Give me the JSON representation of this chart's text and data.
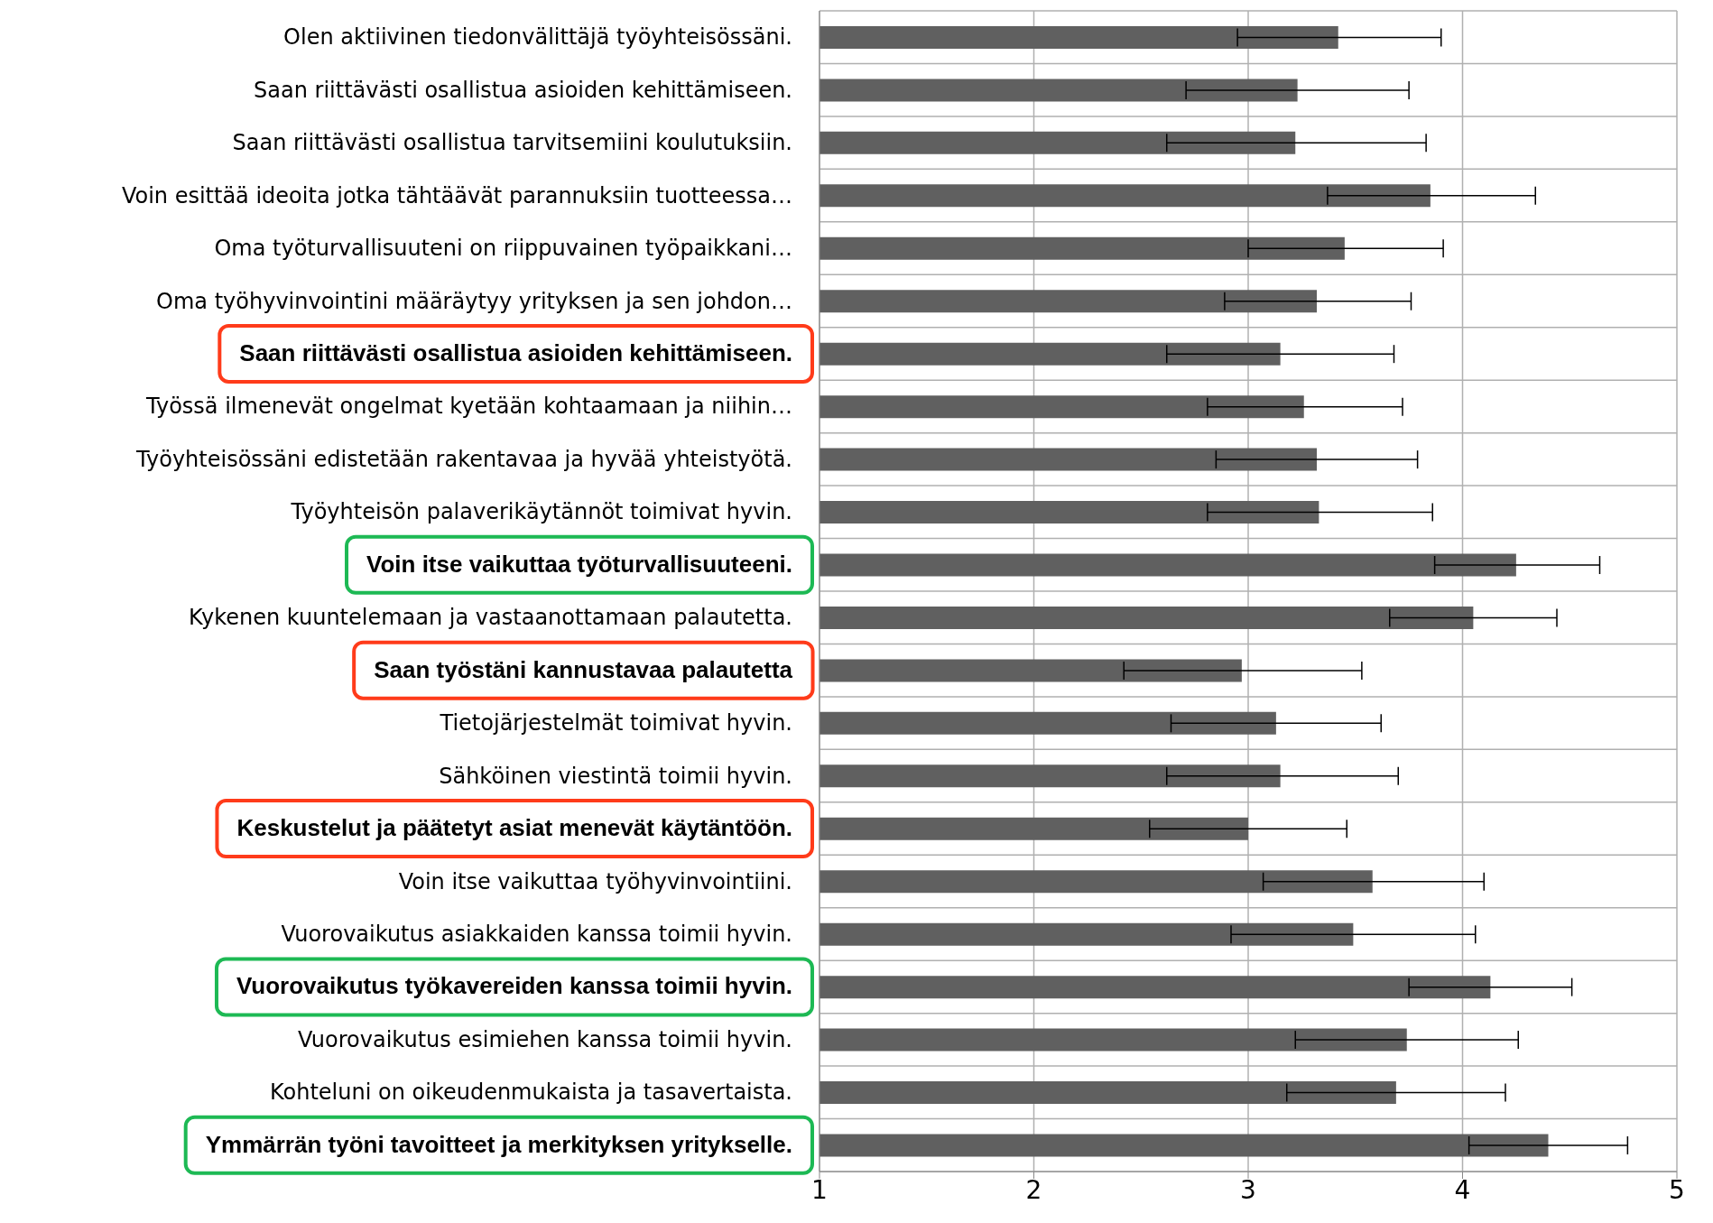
{
  "chart_data": {
    "type": "bar",
    "orientation": "horizontal",
    "categories": [
      "Olen aktiivinen tiedonvälittäjä työyhteisössäni.",
      "Saan riittävästi osallistua asioiden kehittämiseen.",
      "Saan riittävästi osallistua tarvitsemiini koulutuksiin.",
      "Voin esittää ideoita jotka tähtäävät parannuksiin tuotteessa…",
      "Oma työturvallisuuteni on riippuvainen työpaikkani…",
      "Oma työhyvinvointini määräytyy yrityksen ja sen johdon…",
      "Saan riittävästi osallistua asioiden kehittämiseen.",
      "Työssä ilmenevät ongelmat kyetään kohtaamaan ja niihin…",
      "Työyhteisössäni edistetään rakentavaa ja hyvää yhteistyötä.",
      "Työyhteisön palaverikäytännöt toimivat hyvin.",
      "Voin itse vaikuttaa työturvallisuuteeni.",
      "Kykenen kuuntelemaan ja vastaanottamaan palautetta.",
      "Saan työstäni kannustavaa palautetta",
      "Tietojärjestelmät toimivat hyvin.",
      "Sähköinen viestintä toimii hyvin.",
      "Keskustelut ja päätetyt asiat menevät käytäntöön.",
      "Voin itse vaikuttaa työhyvinvointiini.",
      "Vuorovaikutus asiakkaiden kanssa toimii hyvin.",
      "Vuorovaikutus työkavereiden kanssa toimii hyvin.",
      "Vuorovaikutus esimiehen kanssa toimii hyvin.",
      "Kohteluni on oikeudenmukaista ja tasavertaista.",
      "Ymmärrän työni tavoitteet ja merkityksen yritykselle."
    ],
    "values": [
      3.42,
      3.23,
      3.22,
      3.85,
      3.45,
      3.32,
      3.15,
      3.26,
      3.32,
      3.33,
      4.25,
      4.05,
      2.97,
      3.13,
      3.15,
      3.0,
      3.58,
      3.49,
      4.13,
      3.74,
      3.69,
      4.4
    ],
    "errors": [
      [
        2.95,
        3.9
      ],
      [
        2.71,
        3.75
      ],
      [
        2.62,
        3.83
      ],
      [
        3.37,
        4.34
      ],
      [
        3.0,
        3.91
      ],
      [
        2.89,
        3.76
      ],
      [
        2.62,
        3.68
      ],
      [
        2.81,
        3.72
      ],
      [
        2.85,
        3.79
      ],
      [
        2.81,
        3.86
      ],
      [
        3.87,
        4.64
      ],
      [
        3.66,
        4.44
      ],
      [
        2.42,
        3.53
      ],
      [
        2.64,
        3.62
      ],
      [
        2.62,
        3.7
      ],
      [
        2.54,
        3.46
      ],
      [
        3.07,
        4.1
      ],
      [
        2.92,
        4.06
      ],
      [
        3.75,
        4.51
      ],
      [
        3.22,
        4.26
      ],
      [
        3.18,
        4.2
      ],
      [
        4.03,
        4.77
      ]
    ],
    "color": "#606060",
    "xlim": [
      1,
      5
    ],
    "xticks": [
      1,
      2,
      3,
      4,
      5
    ],
    "grid": true
  }
}
